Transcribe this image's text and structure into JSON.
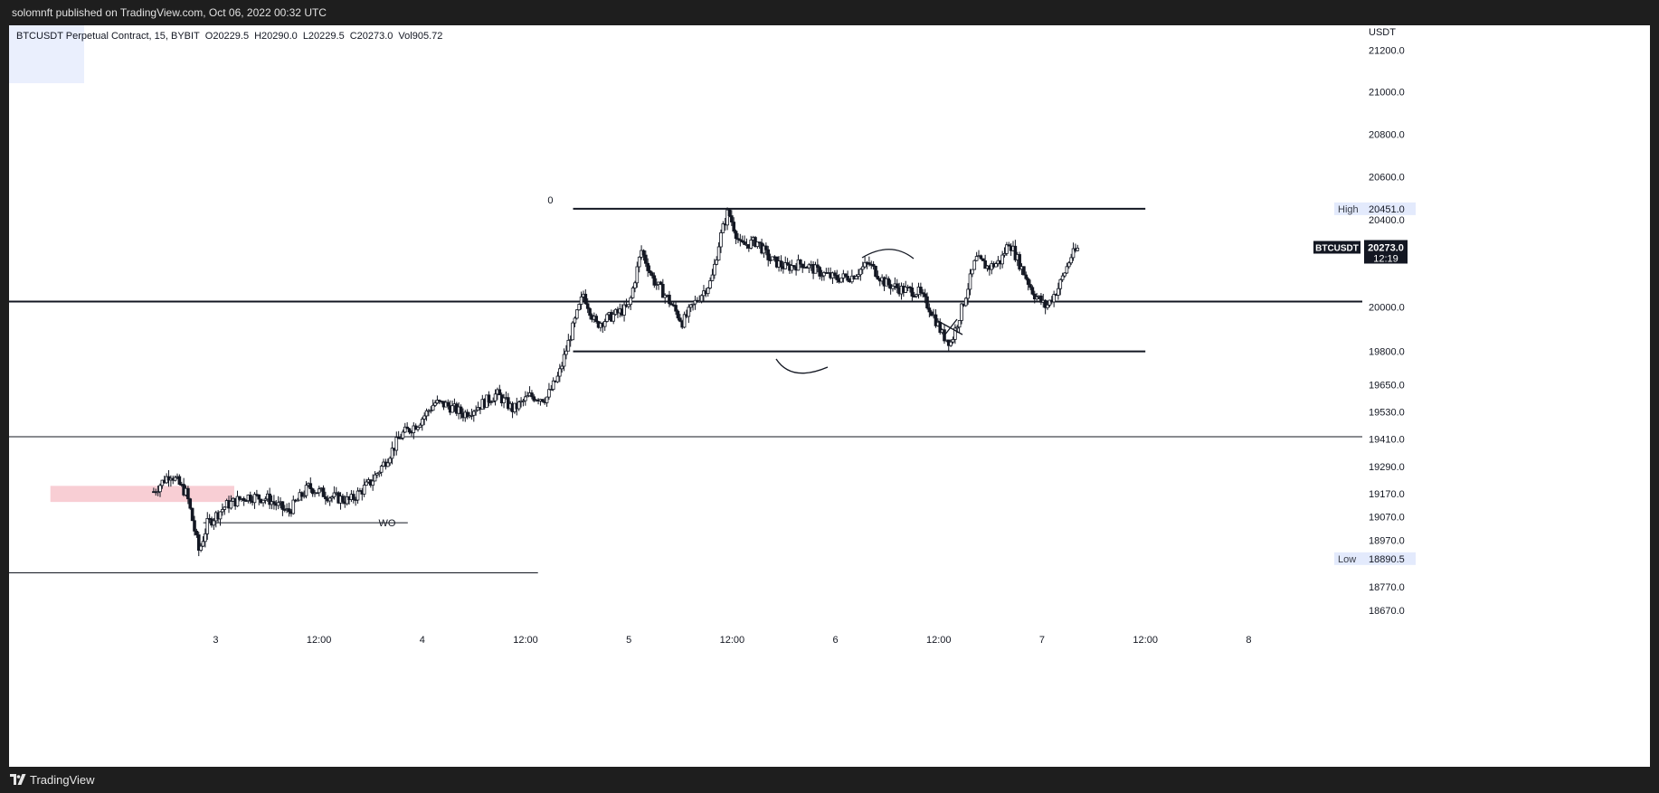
{
  "header": {
    "publish_text": "solomnft published on TradingView.com, Oct 06, 2022 00:32 UTC"
  },
  "footer": {
    "brand_label": "TradingView",
    "brand_icon": "tradingview-logo-icon"
  },
  "legend": {
    "symbol": "BTCUSDT Perpetual Contract, 15, BYBIT",
    "open": "O20229.5",
    "high": "H20290.0",
    "low": "L20229.5",
    "close": "C20273.0",
    "volume": "Vol905.72"
  },
  "colors": {
    "candle": "#131722",
    "zone_fill": "#f7c6cc",
    "label_bg": "#e3eafc",
    "price_tag_bg": "#131722"
  },
  "chart_data": {
    "type": "candlestick",
    "symbol": "BTCUSDT",
    "ylabel": "USDT",
    "ylim": [
      18590,
      21320
    ],
    "y_scale": "log",
    "y_ticks": [
      "21200.0",
      "21000.0",
      "20800.0",
      "20600.0",
      "20400.0",
      "20000.0",
      "19800.0",
      "19650.0",
      "19530.0",
      "19410.0",
      "19290.0",
      "19170.0",
      "19070.0",
      "18970.0",
      "18770.0",
      "18670.0"
    ],
    "x_range_days": [
      2.0,
      8.55
    ],
    "x_ticks": [
      {
        "day": 3,
        "label": "3"
      },
      {
        "day": 3.5,
        "label": "12:00"
      },
      {
        "day": 4,
        "label": "4"
      },
      {
        "day": 4.5,
        "label": "12:00"
      },
      {
        "day": 5,
        "label": "5"
      },
      {
        "day": 5.5,
        "label": "12:00"
      },
      {
        "day": 6,
        "label": "6"
      },
      {
        "day": 6.5,
        "label": "12:00"
      },
      {
        "day": 7,
        "label": "7"
      },
      {
        "day": 7.5,
        "label": "12:00"
      },
      {
        "day": 8,
        "label": "8"
      }
    ],
    "price_path": [
      [
        2.7,
        19180
      ],
      [
        2.78,
        19260
      ],
      [
        2.86,
        19170
      ],
      [
        2.92,
        18920
      ],
      [
        2.96,
        19040
      ],
      [
        3.05,
        19120
      ],
      [
        3.15,
        19160
      ],
      [
        3.25,
        19150
      ],
      [
        3.35,
        19090
      ],
      [
        3.45,
        19200
      ],
      [
        3.55,
        19160
      ],
      [
        3.65,
        19140
      ],
      [
        3.75,
        19220
      ],
      [
        3.82,
        19310
      ],
      [
        3.9,
        19430
      ],
      [
        3.98,
        19480
      ],
      [
        4.06,
        19570
      ],
      [
        4.12,
        19560
      ],
      [
        4.2,
        19520
      ],
      [
        4.28,
        19560
      ],
      [
        4.36,
        19610
      ],
      [
        4.44,
        19540
      ],
      [
        4.52,
        19600
      ],
      [
        4.6,
        19590
      ],
      [
        4.66,
        19690
      ],
      [
        4.72,
        19880
      ],
      [
        4.78,
        20060
      ],
      [
        4.84,
        19920
      ],
      [
        4.92,
        19960
      ],
      [
        5.0,
        20000
      ],
      [
        5.06,
        20260
      ],
      [
        5.12,
        20120
      ],
      [
        5.18,
        20050
      ],
      [
        5.26,
        19930
      ],
      [
        5.32,
        20020
      ],
      [
        5.4,
        20120
      ],
      [
        5.44,
        20310
      ],
      [
        5.48,
        20440
      ],
      [
        5.54,
        20280
      ],
      [
        5.62,
        20300
      ],
      [
        5.68,
        20220
      ],
      [
        5.76,
        20180
      ],
      [
        5.84,
        20200
      ],
      [
        5.92,
        20160
      ],
      [
        6.0,
        20130
      ],
      [
        6.08,
        20140
      ],
      [
        6.16,
        20200
      ],
      [
        6.24,
        20110
      ],
      [
        6.32,
        20080
      ],
      [
        6.4,
        20070
      ],
      [
        6.46,
        19990
      ],
      [
        6.52,
        19870
      ],
      [
        6.56,
        19840
      ],
      [
        6.62,
        20020
      ],
      [
        6.68,
        20220
      ],
      [
        6.74,
        20180
      ],
      [
        6.8,
        20210
      ],
      [
        6.84,
        20300
      ],
      [
        6.9,
        20180
      ],
      [
        6.96,
        20060
      ],
      [
        7.02,
        20000
      ],
      [
        7.08,
        20090
      ],
      [
        7.14,
        20230
      ],
      [
        7.18,
        20273
      ]
    ],
    "levels": [
      {
        "price": 20451,
        "day_from": 4.73,
        "day_to": 7.5,
        "width": 2
      },
      {
        "price": 20025,
        "day_from": 2.0,
        "day_to": 8.55,
        "width": 2
      },
      {
        "price": 19800,
        "day_from": 4.73,
        "day_to": 7.5,
        "width": 2
      },
      {
        "price": 19420,
        "day_from": 2.0,
        "day_to": 8.55,
        "width": 1
      },
      {
        "price": 19045,
        "day_from": 2.94,
        "day_to": 3.93,
        "width": 1
      },
      {
        "price": 18830,
        "day_from": 2.0,
        "day_to": 4.56,
        "width": 1
      }
    ],
    "zone": {
      "price_top": 19205,
      "price_bottom": 19135,
      "day_from": 2.2,
      "day_to": 3.09
    },
    "annotations": [
      {
        "text": "0",
        "day": 4.62,
        "price": 20476
      },
      {
        "text": "WO",
        "day": 3.83,
        "price": 19030
      }
    ],
    "price_labels": [
      {
        "name": "High",
        "value": "20451.0",
        "price": 20451
      },
      {
        "name": "Low",
        "value": "18890.5",
        "price": 18890.5
      }
    ],
    "last_price": {
      "symbol": "BTCUSDT",
      "value": "20273.0",
      "countdown": "12:19",
      "price": 20273
    }
  }
}
